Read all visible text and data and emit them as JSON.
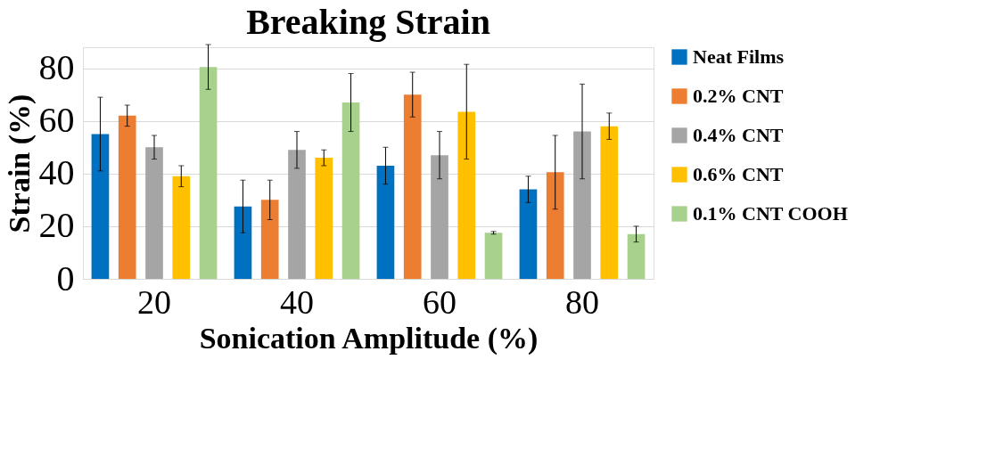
{
  "chart_data": {
    "type": "bar",
    "title": "Breaking Strain",
    "xlabel": "Sonication Amplitude (%)",
    "ylabel": "Strain (%)",
    "categories": [
      "20",
      "40",
      "60",
      "80"
    ],
    "ylim": [
      0,
      88
    ],
    "yticks": [
      0,
      20,
      40,
      60,
      80
    ],
    "grid": "y",
    "legend": "right",
    "series": [
      {
        "name": "Neat Films",
        "color": "#0070c0",
        "values": [
          55,
          27.5,
          43,
          34
        ],
        "errors": [
          14,
          10,
          7,
          5
        ]
      },
      {
        "name": "0.2% CNT",
        "color": "#ed7d31",
        "values": [
          62,
          30,
          70,
          40.5
        ],
        "errors": [
          4,
          7.5,
          8.5,
          14
        ]
      },
      {
        "name": "0.4% CNT",
        "color": "#a5a5a5",
        "values": [
          50,
          49,
          47,
          56
        ],
        "errors": [
          4.5,
          7,
          9,
          18
        ]
      },
      {
        "name": "0.6% CNT",
        "color": "#ffc000",
        "values": [
          39,
          46,
          63.5,
          58
        ],
        "errors": [
          4,
          3,
          18,
          5
        ]
      },
      {
        "name": "0.1% CNT COOH",
        "color": "#a9d18e",
        "values": [
          80.5,
          67,
          17.5,
          17
        ],
        "errors": [
          8.5,
          11,
          0.5,
          3
        ]
      }
    ]
  }
}
